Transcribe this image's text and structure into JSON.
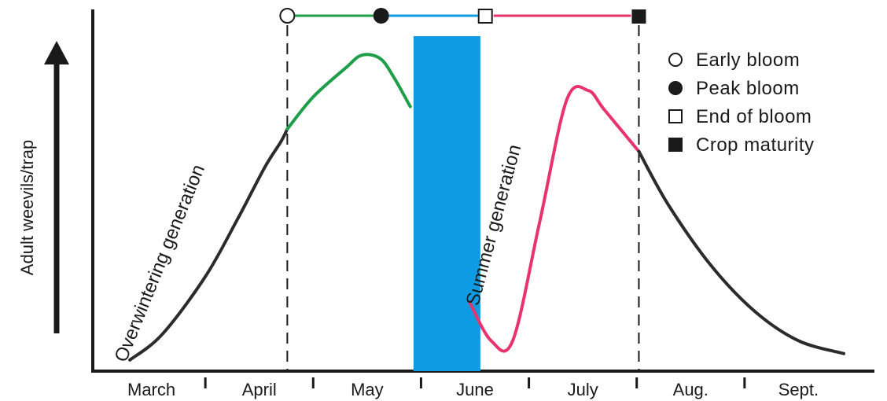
{
  "chart_data": {
    "type": "line",
    "ylabel": "Adult weevils/trap",
    "x_ticks": [
      "March",
      "April",
      "May",
      "June",
      "July",
      "Aug.",
      "Sept."
    ],
    "legend": [
      {
        "label": "Early bloom",
        "marker": "open-circle"
      },
      {
        "label": "Peak bloom",
        "marker": "filled-circle"
      },
      {
        "label": "End of bloom",
        "marker": "open-square"
      },
      {
        "label": "Crop maturity",
        "marker": "filled-square"
      }
    ],
    "annotations": {
      "overwintering": "Overwintering generation",
      "summer": "Summer generation"
    },
    "series": [
      {
        "color": "#2b2b2b",
        "points": [
          [
            0.3,
            2
          ],
          [
            0.6,
            10
          ],
          [
            1.0,
            28
          ],
          [
            1.3,
            46
          ],
          [
            1.55,
            62
          ],
          [
            1.7,
            70
          ],
          [
            1.76,
            74
          ]
        ]
      },
      {
        "color": "#1f9e4a",
        "points": [
          [
            1.76,
            74
          ],
          [
            2.0,
            84
          ],
          [
            2.3,
            93
          ],
          [
            2.45,
            97
          ],
          [
            2.62,
            96
          ],
          [
            2.75,
            90
          ],
          [
            2.9,
            81
          ]
        ]
      },
      {
        "color": "#e8336d",
        "points": [
          [
            3.45,
            20
          ],
          [
            3.65,
            8
          ],
          [
            3.85,
            8
          ],
          [
            4.1,
            45
          ],
          [
            4.35,
            83
          ],
          [
            4.55,
            86
          ],
          [
            4.7,
            80
          ],
          [
            5.02,
            67
          ]
        ]
      },
      {
        "color": "#2b2b2b",
        "points": [
          [
            5.02,
            67
          ],
          [
            5.3,
            50
          ],
          [
            5.7,
            31
          ],
          [
            6.1,
            17
          ],
          [
            6.5,
            8
          ],
          [
            6.92,
            4
          ]
        ]
      }
    ],
    "bloom_band": {
      "x_start": 2.93,
      "x_end": 3.55,
      "color": "#0d9be3"
    },
    "event_lines": [
      1.76,
      5.02
    ],
    "phase_bar": [
      {
        "marker": "open-circle",
        "x": 1.76
      },
      {
        "marker": "filled-circle",
        "x": 2.63
      },
      {
        "marker": "open-square",
        "x": 3.6
      },
      {
        "marker": "filled-square",
        "x": 5.02
      }
    ],
    "phase_segments": [
      {
        "from": 1.76,
        "to": 2.63,
        "color": "#1f9e4a"
      },
      {
        "from": 2.63,
        "to": 3.6,
        "color": "#0d9be3"
      },
      {
        "from": 3.6,
        "to": 5.02,
        "color": "#e8336d"
      }
    ],
    "xlim": [
      0,
      7
    ],
    "ylim": [
      0,
      100
    ],
    "grid": false,
    "legend_position": "top-right"
  }
}
